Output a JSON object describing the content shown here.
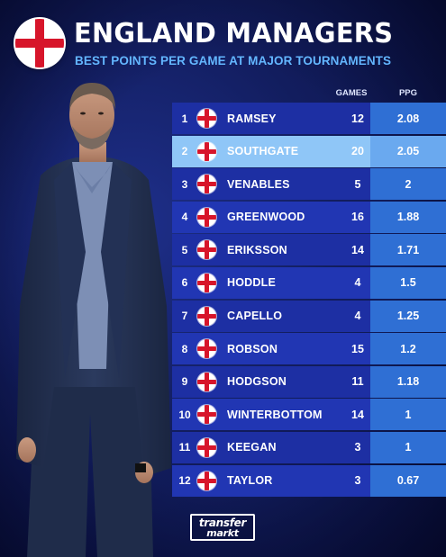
{
  "header": {
    "title": "ENGLAND MANAGERS",
    "subtitle": "BEST POINTS PER GAME AT MAJOR TOURNAMENTS"
  },
  "table": {
    "col_games": "GAMES",
    "col_ppg": "PPG",
    "rows": [
      {
        "rank": "1",
        "name": "RAMSEY",
        "games": "12",
        "ppg": "2.08"
      },
      {
        "rank": "2",
        "name": "SOUTHGATE",
        "games": "20",
        "ppg": "2.05"
      },
      {
        "rank": "3",
        "name": "VENABLES",
        "games": "5",
        "ppg": "2"
      },
      {
        "rank": "4",
        "name": "GREENWOOD",
        "games": "16",
        "ppg": "1.88"
      },
      {
        "rank": "5",
        "name": "ERIKSSON",
        "games": "14",
        "ppg": "1.71"
      },
      {
        "rank": "6",
        "name": "HODDLE",
        "games": "4",
        "ppg": "1.5"
      },
      {
        "rank": "7",
        "name": "CAPELLO",
        "games": "4",
        "ppg": "1.25"
      },
      {
        "rank": "8",
        "name": "ROBSON",
        "games": "15",
        "ppg": "1.2"
      },
      {
        "rank": "9",
        "name": "HODGSON",
        "games": "11",
        "ppg": "1.18"
      },
      {
        "rank": "10",
        "name": "WINTERBOTTOM",
        "games": "14",
        "ppg": "1"
      },
      {
        "rank": "11",
        "name": "KEEGAN",
        "games": "3",
        "ppg": "1"
      },
      {
        "rank": "12",
        "name": "TAYLOR",
        "games": "3",
        "ppg": "0.67"
      }
    ],
    "highlight_rank": "2"
  },
  "logo": {
    "line1": "transfer",
    "line2": "markt"
  },
  "icons": {
    "badge": "england-flag-icon",
    "row_flag": "england-flag-icon"
  },
  "colors": {
    "background": "#121d5e",
    "row": "#1d2fa3",
    "ppg_cell": "#2f6fd4",
    "highlight_row": "#8fc6f7",
    "accent_subtitle": "#63b6ff",
    "flag_red": "#d7152a"
  }
}
